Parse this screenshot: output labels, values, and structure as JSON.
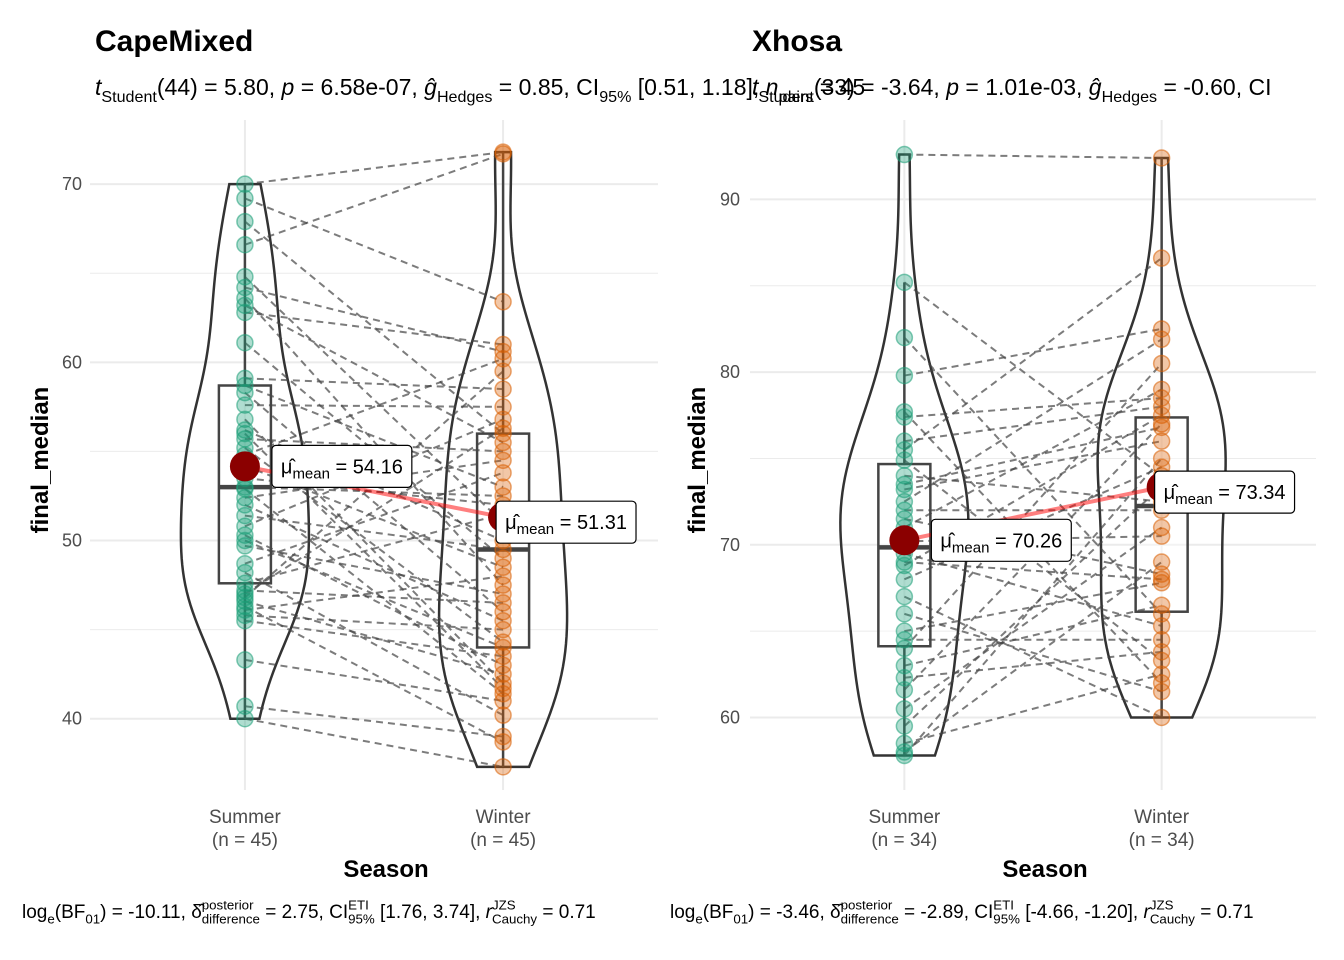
{
  "chart_data": [
    {
      "type": "paired-violin",
      "title": "CapeMixed",
      "subtitle": [
        {
          "text": "t",
          "italic": true
        },
        {
          "sub": "Student"
        },
        {
          "text": "(44) = 5.80, "
        },
        {
          "text": "p",
          "italic": true
        },
        {
          "text": " = 6.58e-07, "
        },
        {
          "text": "ĝ",
          "italic": true
        },
        {
          "sub": "Hedges"
        },
        {
          "text": " = 0.85, CI"
        },
        {
          "sub": "95%"
        },
        {
          "text": " [0.51, 1.18], "
        },
        {
          "text": "n",
          "italic": true
        },
        {
          "sub": "pairs"
        },
        {
          "text": " = 45"
        }
      ],
      "caption": [
        {
          "text": "log"
        },
        {
          "sub": "e"
        },
        {
          "text": "(BF"
        },
        {
          "sub": "01"
        },
        {
          "text": ") = -10.11, "
        },
        {
          "text": "δ̂"
        },
        {
          "sup": "posterior",
          "sub": "difference"
        },
        {
          "text": " = 2.75, CI"
        },
        {
          "sup": "ETI",
          "sub": "95%"
        },
        {
          "text": " [1.76, 3.74], "
        },
        {
          "text": "r",
          "italic": true
        },
        {
          "sup": "JZS",
          "sub": "Cauchy"
        },
        {
          "text": " = 0.71"
        }
      ],
      "x_label": "Season",
      "y_label": "final_median",
      "categories": [
        "Summer",
        "Winter"
      ],
      "category_notes": [
        "(n = 45)",
        "(n = 45)"
      ],
      "series": [
        {
          "color": "#1b9e77",
          "values": [
            70.0,
            69.2,
            67.9,
            66.6,
            64.8,
            64.2,
            63.6,
            63.2,
            62.8,
            61.1,
            59.1,
            58.7,
            58.3,
            57.6,
            56.8,
            56.2,
            55.7,
            55.2,
            54.8,
            54.2,
            53.5,
            52.9,
            52.4,
            52.0,
            51.4,
            50.8,
            50.3,
            49.7,
            48.7,
            48.2,
            47.6,
            47.2,
            46.8,
            46.6,
            46.3,
            46.1,
            45.8,
            45.5,
            43.3,
            40.7,
            40.0,
            47.0,
            50.0,
            53.0,
            56.0
          ]
        },
        {
          "color": "#d95f02",
          "values": [
            71.8,
            63.4,
            56.0,
            71.7,
            51.0,
            60.6,
            47.5,
            55.5,
            61.0,
            49.0,
            58.5,
            53.0,
            46.0,
            57.5,
            42.0,
            50.0,
            55.0,
            44.3,
            60.2,
            48.5,
            52.0,
            41.4,
            54.5,
            45.5,
            49.5,
            56.8,
            43.0,
            47.0,
            53.8,
            40.2,
            51.5,
            46.5,
            59.5,
            42.5,
            38.7,
            48.0,
            45.0,
            43.5,
            41.0,
            39.0,
            37.3,
            56.3,
            44.0,
            52.5,
            41.7
          ]
        }
      ],
      "means": [
        54.16,
        51.31
      ],
      "mean_label": {
        "symbol": "μ̂",
        "sub": "mean",
        "sep": " = "
      },
      "mean_color": "#8b0000",
      "ylim": [
        36,
        73.6
      ],
      "yticks": [
        40,
        50,
        60,
        70
      ],
      "grid": true
    },
    {
      "type": "paired-violin",
      "title": "Xhosa",
      "subtitle": [
        {
          "text": "t",
          "italic": true
        },
        {
          "sub": "Student"
        },
        {
          "text": "(33) = -3.64, "
        },
        {
          "text": "p",
          "italic": true
        },
        {
          "text": " = 1.01e-03, "
        },
        {
          "text": "ĝ",
          "italic": true
        },
        {
          "sub": "Hedges"
        },
        {
          "text": " = -0.60, CI"
        }
      ],
      "caption": [
        {
          "text": "log"
        },
        {
          "sub": "e"
        },
        {
          "text": "(BF"
        },
        {
          "sub": "01"
        },
        {
          "text": ") = -3.46, "
        },
        {
          "text": "δ̂"
        },
        {
          "sup": "posterior",
          "sub": "difference"
        },
        {
          "text": " = -2.89, CI"
        },
        {
          "sup": "ETI",
          "sub": "95%"
        },
        {
          "text": " [-4.66, -1.20], "
        },
        {
          "text": "r",
          "italic": true
        },
        {
          "sup": "JZS",
          "sub": "Cauchy"
        },
        {
          "text": " = 0.71"
        }
      ],
      "x_label": "Season",
      "y_label": "final_median",
      "categories": [
        "Summer",
        "Winter"
      ],
      "category_notes": [
        "(n = 34)",
        "(n = 34)"
      ],
      "series": [
        {
          "color": "#1b9e77",
          "values": [
            92.6,
            85.2,
            82.0,
            79.8,
            77.7,
            77.4,
            75.5,
            74.9,
            74.0,
            73.2,
            72.5,
            71.5,
            71.0,
            70.2,
            69.5,
            68.8,
            68.0,
            64.5,
            64.0,
            63.0,
            62.3,
            61.6,
            60.5,
            59.5,
            58.5,
            58.0,
            57.8,
            66.0,
            65.0,
            67.0,
            72.0,
            76.0,
            73.5,
            69.0
          ]
        },
        {
          "color": "#d95f02",
          "values": [
            92.4,
            74.0,
            66.0,
            82.5,
            62.0,
            78.5,
            86.6,
            63.3,
            72.5,
            76.0,
            81.9,
            68.3,
            79.0,
            70.5,
            65.3,
            77.5,
            74.5,
            64.5,
            80.5,
            66.5,
            63.8,
            77.0,
            71.0,
            73.4,
            62.5,
            69.0,
            75.0,
            61.5,
            67.8,
            60.0,
            72.0,
            78.0,
            76.8,
            68.0
          ]
        }
      ],
      "means": [
        70.26,
        73.34
      ],
      "mean_label": {
        "symbol": "μ̂",
        "sub": "mean",
        "sep": " = "
      },
      "mean_color": "#8b0000",
      "ylim": [
        55.8,
        94.6
      ],
      "yticks": [
        60,
        70,
        80,
        90
      ],
      "grid": true
    }
  ]
}
